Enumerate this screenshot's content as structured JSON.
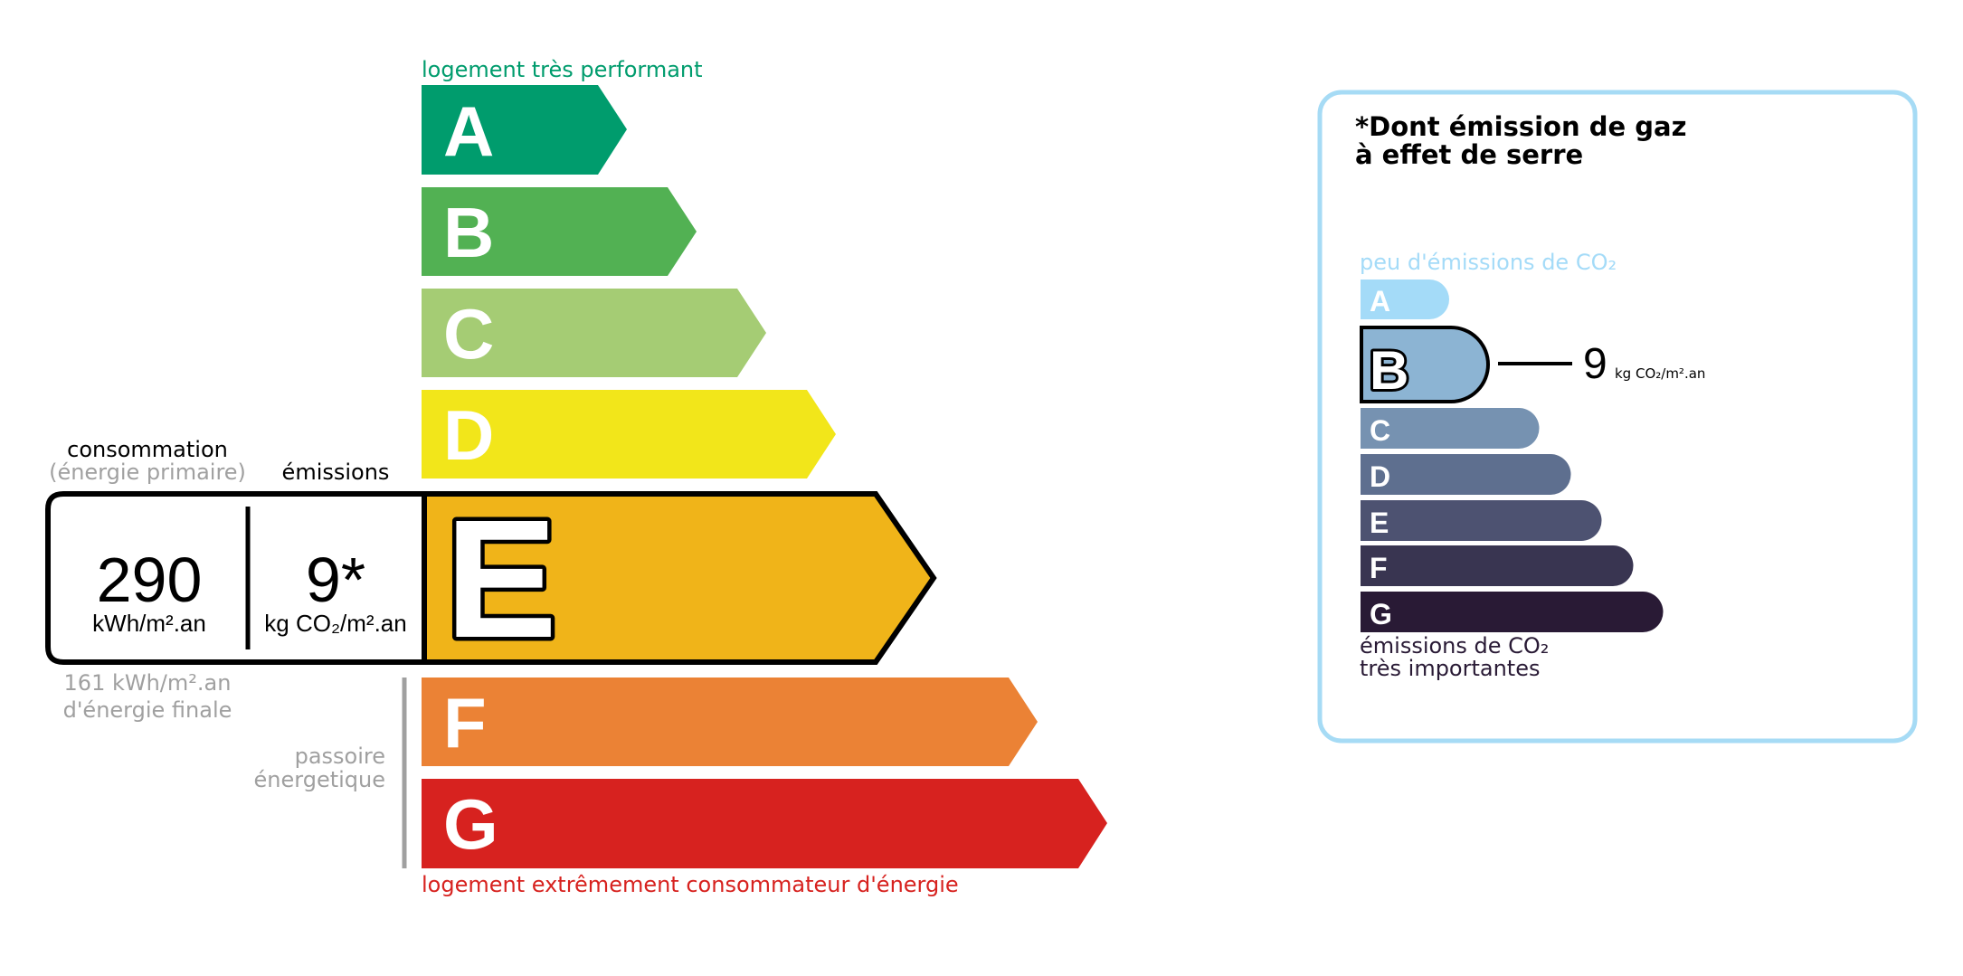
{
  "energy": {
    "top_label": "logement très performant",
    "bottom_label": "logement extrêmement consommateur d'énergie",
    "top_label_color": "#009c6d",
    "bottom_label_color": "#d7221f",
    "classes": [
      {
        "letter": "A",
        "color": "#009c6d"
      },
      {
        "letter": "B",
        "color": "#52b153"
      },
      {
        "letter": "C",
        "color": "#a5cc74"
      },
      {
        "letter": "D",
        "color": "#f2e61a"
      },
      {
        "letter": "E",
        "color": "#f0b419"
      },
      {
        "letter": "F",
        "color": "#eb8235"
      },
      {
        "letter": "G",
        "color": "#d7221f"
      }
    ],
    "current_class": "E",
    "consumption_heading": "consommation",
    "consumption_subheading": "(énergie primaire)",
    "emissions_heading": "émissions",
    "consumption_value": "290",
    "consumption_unit": "kWh/m².an",
    "emissions_value": "9*",
    "emissions_unit": "kg CO₂/m².an",
    "final_energy_value": "161 kWh/m².an",
    "final_energy_label": "d'énergie finale",
    "passoire_line1": "passoire",
    "passoire_line2": "énergetique"
  },
  "ges": {
    "title_line1": "*Dont émission de gaz",
    "title_line2": "à effet de serre",
    "top_label": "peu d'émissions de CO₂",
    "bottom_label_line1": "émissions de CO₂",
    "bottom_label_line2": "très importantes",
    "border_color": "#a6dbf5",
    "classes": [
      {
        "letter": "A",
        "color": "#a4dbf8"
      },
      {
        "letter": "B",
        "color": "#8cb4d3"
      },
      {
        "letter": "C",
        "color": "#7692b1"
      },
      {
        "letter": "D",
        "color": "#5e6f8f"
      },
      {
        "letter": "E",
        "color": "#4d5271"
      },
      {
        "letter": "F",
        "color": "#393551"
      },
      {
        "letter": "G",
        "color": "#291a35"
      }
    ],
    "current_class": "B",
    "value": "9",
    "unit": "kg CO₂/m².an"
  }
}
